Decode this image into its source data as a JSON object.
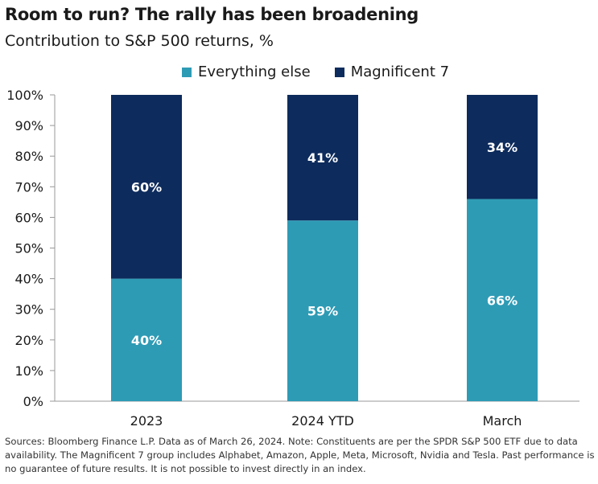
{
  "title": "Room to run? The rally has been broadening",
  "subtitle": "Contribution to S&P 500 returns, %",
  "footnote": "Sources: Bloomberg Finance L.P. Data as of March 26, 2024. Note: Constituents are per the SPDR S&P 500 ETF due to data availability. The Magnificent 7 group includes Alphabet, Amazon, Apple, Meta, Microsoft, Nvidia and Tesla. Past performance is no guarantee of future results. It is not possible to invest directly in an index.",
  "colors": {
    "everything_else": "#2e9bb5",
    "magnificent_7": "#0d2b5c"
  },
  "chart_data": {
    "type": "bar",
    "stacked": true,
    "title": "Room to run? The rally has been broadening",
    "subtitle": "Contribution to S&P 500 returns, %",
    "categories": [
      "2023",
      "2024 YTD",
      "March"
    ],
    "series": [
      {
        "name": "Everything else",
        "values": [
          40,
          59,
          66
        ],
        "labels": [
          "40%",
          "59%",
          "66%"
        ]
      },
      {
        "name": "Magnificent 7",
        "values": [
          60,
          41,
          34
        ],
        "labels": [
          "60%",
          "41%",
          "34%"
        ]
      }
    ],
    "yticks": [
      "0%",
      "10%",
      "20%",
      "30%",
      "40%",
      "50%",
      "60%",
      "70%",
      "80%",
      "90%",
      "100%"
    ],
    "ylim": [
      0,
      100
    ],
    "legend": "top",
    "grid": false
  }
}
